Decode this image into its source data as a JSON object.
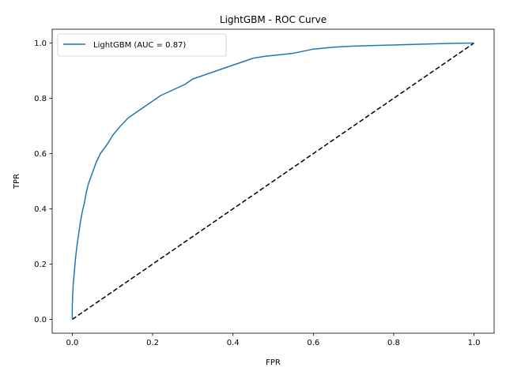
{
  "chart_data": {
    "type": "line",
    "title": "LightGBM - ROC Curve",
    "xlabel": "FPR",
    "ylabel": "TPR",
    "xlim": [
      -0.05,
      1.05
    ],
    "ylim": [
      -0.05,
      1.05
    ],
    "xticks": [
      0.0,
      0.2,
      0.4,
      0.6,
      0.8,
      1.0
    ],
    "yticks": [
      0.0,
      0.2,
      0.4,
      0.6,
      0.8,
      1.0
    ],
    "xtick_labels": [
      "0.0",
      "0.2",
      "0.4",
      "0.6",
      "0.8",
      "1.0"
    ],
    "ytick_labels": [
      "0.0",
      "0.2",
      "0.4",
      "0.6",
      "0.8",
      "1.0"
    ],
    "grid": false,
    "legend_position": "top-left",
    "series": [
      {
        "name": "LightGBM (AUC = 0.87)",
        "color": "#1f77b4",
        "style": "solid",
        "x": [
          0.0,
          0.0,
          0.002,
          0.005,
          0.008,
          0.012,
          0.016,
          0.02,
          0.025,
          0.03,
          0.035,
          0.04,
          0.05,
          0.06,
          0.07,
          0.08,
          0.09,
          0.1,
          0.12,
          0.14,
          0.16,
          0.18,
          0.2,
          0.22,
          0.25,
          0.28,
          0.3,
          0.32,
          0.35,
          0.38,
          0.4,
          0.42,
          0.45,
          0.48,
          0.5,
          0.55,
          0.58,
          0.6,
          0.65,
          0.7,
          0.75,
          0.8,
          0.85,
          0.9,
          0.95,
          1.0
        ],
        "y": [
          0.0,
          0.05,
          0.12,
          0.17,
          0.22,
          0.27,
          0.31,
          0.35,
          0.39,
          0.42,
          0.46,
          0.49,
          0.53,
          0.57,
          0.6,
          0.62,
          0.64,
          0.665,
          0.7,
          0.73,
          0.75,
          0.77,
          0.79,
          0.81,
          0.83,
          0.85,
          0.87,
          0.88,
          0.895,
          0.91,
          0.92,
          0.93,
          0.945,
          0.952,
          0.955,
          0.963,
          0.972,
          0.978,
          0.985,
          0.989,
          0.991,
          0.993,
          0.995,
          0.997,
          0.999,
          1.0
        ]
      },
      {
        "color": "#000000",
        "style": "dashed",
        "x": [
          0.0,
          1.0
        ],
        "y": [
          0.0,
          1.0
        ]
      }
    ]
  }
}
